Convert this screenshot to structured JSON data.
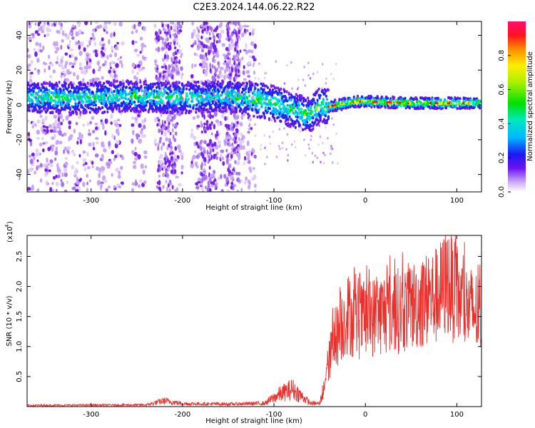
{
  "title": "C2E3.2024.144.06.22.R22",
  "chart_data": [
    {
      "type": "heatmap",
      "xlabel": "Height of straight line (km)",
      "ylabel": "Frequency (Hz)",
      "xlim": [
        -370,
        127
      ],
      "ylim": [
        -50,
        48
      ],
      "xticks": [
        -300,
        -200,
        -100,
        0,
        100
      ],
      "yticks": [
        -40,
        -20,
        0,
        20,
        40
      ],
      "colorbar": {
        "label": "Normalized spectral amplitude",
        "range": [
          0,
          1
        ],
        "ticks": [
          "0.0",
          "0.2",
          "0.4",
          "0.6",
          "0.8"
        ]
      },
      "signal_center_hz": {
        "x": [
          -300,
          -260,
          -200,
          -150,
          -120,
          -100,
          -80,
          -60,
          -50,
          -40,
          -30,
          -10,
          0,
          50,
          100,
          127
        ],
        "y": [
          4,
          5,
          4,
          5,
          3,
          1,
          -3,
          -6,
          0,
          -1,
          0,
          2,
          2,
          1,
          1,
          1
        ]
      }
    },
    {
      "type": "line",
      "xlabel": "Height of straight line (km)",
      "ylabel": "SNR (10 * v/v)",
      "yscale_label": "(x10",
      "yscale_exp": "4",
      "xlim": [
        -370,
        127
      ],
      "ylim": [
        0,
        28500
      ],
      "xticks": [
        -300,
        -200,
        -100,
        0,
        100
      ],
      "yticks": [
        5000,
        10000,
        15000,
        20000,
        25000
      ],
      "ytick_labels": [
        "0.5",
        "1.0",
        "1.5",
        "2.0",
        "2.5"
      ],
      "color": "#e8302c",
      "envelope": {
        "x": [
          -370,
          -240,
          -220,
          -200,
          -150,
          -110,
          -95,
          -80,
          -70,
          -60,
          -50,
          -42,
          -35,
          -25,
          -20,
          -10,
          0,
          20,
          40,
          60,
          80,
          90,
          100,
          110,
          127
        ],
        "y": [
          300,
          400,
          1400,
          700,
          600,
          800,
          2800,
          4200,
          2500,
          800,
          700,
          7500,
          13000,
          16500,
          19000,
          17000,
          17500,
          19000,
          19500,
          21000,
          22500,
          25500,
          22000,
          20000,
          18500
        ]
      }
    }
  ]
}
